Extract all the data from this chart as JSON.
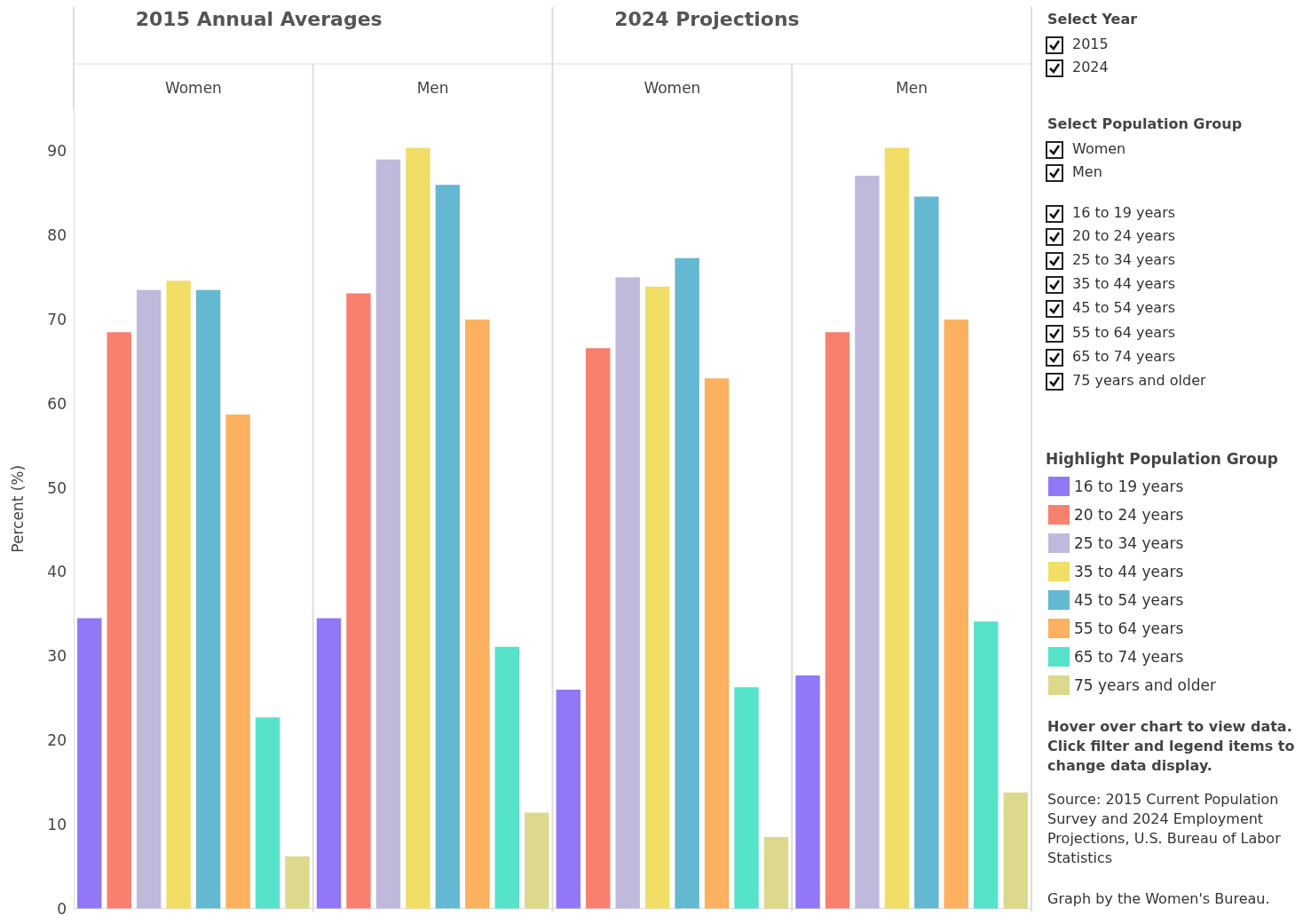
{
  "chart_data": {
    "type": "bar",
    "ylabel": "Percent (%)",
    "legend_title": "Highlight Population Group",
    "categories": [
      "Women",
      "Men",
      "Women",
      "Men"
    ],
    "series": [
      {
        "name": "16 to 19 years",
        "color": "#9178f7",
        "values": [
          34.5,
          34.5,
          26.0,
          27.7
        ]
      },
      {
        "name": "20 to 24 years",
        "color": "#f8806f",
        "values": [
          68.5,
          73.1,
          66.6,
          68.5
        ]
      },
      {
        "name": "25 to 34 years",
        "color": "#bfb9dc",
        "values": [
          73.5,
          89.0,
          75.0,
          87.1
        ]
      },
      {
        "name": "35 to 44 years",
        "color": "#f0de66",
        "values": [
          74.6,
          90.4,
          73.9,
          90.4
        ]
      },
      {
        "name": "45 to 54 years",
        "color": "#64b8d1",
        "values": [
          73.5,
          86.0,
          77.3,
          84.6
        ]
      },
      {
        "name": "55 to 64 years",
        "color": "#fbb15f",
        "values": [
          58.7,
          70.0,
          63.0,
          70.0
        ]
      },
      {
        "name": "65 to 74 years",
        "color": "#55e3ca",
        "values": [
          22.7,
          31.1,
          26.3,
          34.1
        ]
      },
      {
        "name": "75 years and older",
        "color": "#dcd98c",
        "values": [
          6.2,
          11.4,
          8.5,
          13.8
        ]
      }
    ],
    "ylim": [
      0,
      95
    ],
    "yticks": [
      0,
      10,
      20,
      30,
      40,
      50,
      60,
      70,
      80,
      90
    ],
    "grid": false,
    "legend": "right",
    "annotations": [
      "2015 Annual Averages",
      "2024 Projections",
      "Select Year",
      "2015",
      "2024",
      "Select Population Group",
      "Women",
      "Men",
      "16 to 19 years",
      "20 to 24 years",
      "25 to 34 years",
      "35 to 44 years",
      "45 to 54 years",
      "55 to 64 years",
      "65 to 74 years",
      "75 years and older",
      "Hover over chart to view data. Click filter and legend items to change data display.",
      "Source: 2015 Current Population Survey and 2024 Employment Projections, U.S. Bureau of Labor Statistics",
      "Graph by the Women's Bureau."
    ]
  }
}
